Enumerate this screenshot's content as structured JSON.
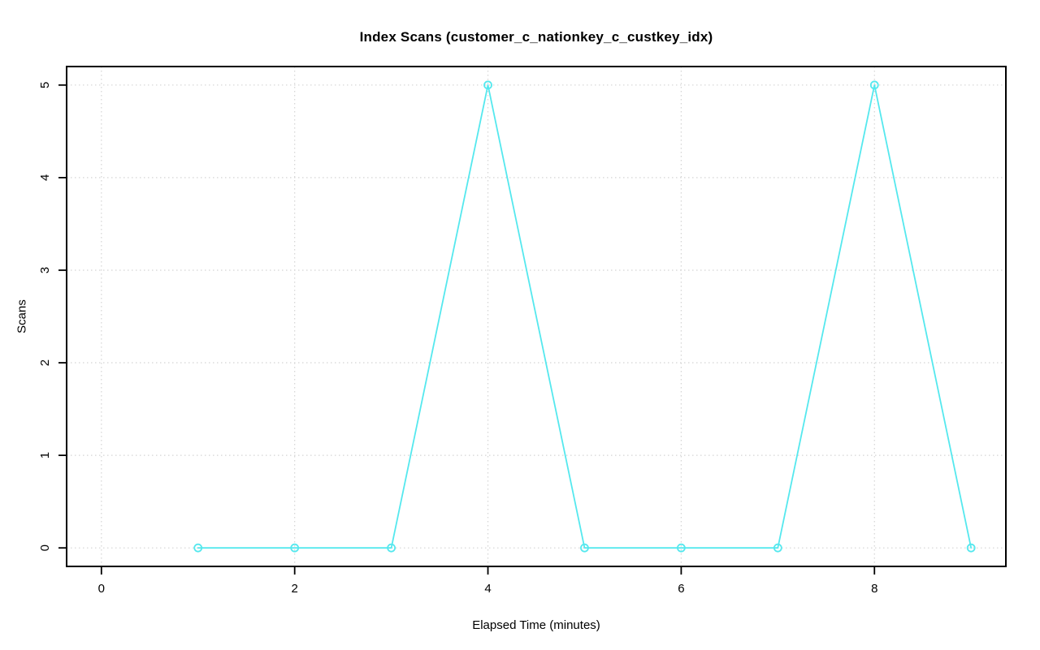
{
  "chart_data": {
    "type": "line",
    "title": "Index Scans (customer_c_nationkey_c_custkey_idx)",
    "xlabel": "Elapsed Time (minutes)",
    "ylabel": "Scans",
    "x": [
      1,
      2,
      3,
      4,
      5,
      6,
      7,
      8,
      9
    ],
    "y": [
      0,
      0,
      0,
      5,
      0,
      0,
      0,
      5,
      0
    ],
    "x_ticks": [
      0,
      2,
      4,
      6,
      8
    ],
    "y_ticks": [
      0,
      1,
      2,
      3,
      4,
      5
    ],
    "xlim": [
      -0.36,
      9.36
    ],
    "ylim": [
      -0.2,
      5.2
    ],
    "grid": true,
    "legend": "none",
    "marker": "open-circle",
    "colors": {
      "line": "#55e8ee",
      "marker": "#55e8ee",
      "grid": "#d4d4d4",
      "axis": "#000000",
      "background": "#ffffff"
    }
  }
}
